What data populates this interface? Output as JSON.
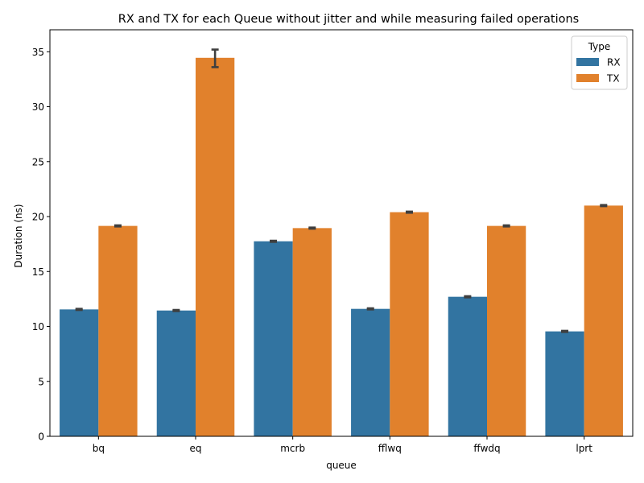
{
  "chart_data": {
    "type": "bar",
    "title": "RX and TX for each Queue without jitter and while measuring failed operations",
    "xlabel": "queue",
    "ylabel": "Duration (ns)",
    "categories": [
      "bq",
      "eq",
      "mcrb",
      "fflwq",
      "ffwdq",
      "lprt"
    ],
    "ylim": [
      0,
      37
    ],
    "yticks": [
      0,
      5,
      10,
      15,
      20,
      25,
      30,
      35
    ],
    "grid": false,
    "legend": {
      "title": "Type",
      "placement": "top-right"
    },
    "series": [
      {
        "name": "RX",
        "color": "#3274a1",
        "values": [
          11.55,
          11.45,
          17.75,
          11.6,
          12.7,
          9.55
        ],
        "err_low": [
          11.5,
          11.4,
          17.7,
          11.55,
          12.65,
          9.5
        ],
        "err_high": [
          11.6,
          11.5,
          17.8,
          11.65,
          12.75,
          9.6
        ]
      },
      {
        "name": "TX",
        "color": "#e1812c",
        "values": [
          19.15,
          34.45,
          18.95,
          20.4,
          19.15,
          21.0
        ],
        "err_low": [
          19.1,
          33.6,
          18.9,
          20.35,
          19.1,
          20.95
        ],
        "err_high": [
          19.2,
          35.2,
          19.0,
          20.45,
          19.2,
          21.05
        ]
      }
    ]
  }
}
